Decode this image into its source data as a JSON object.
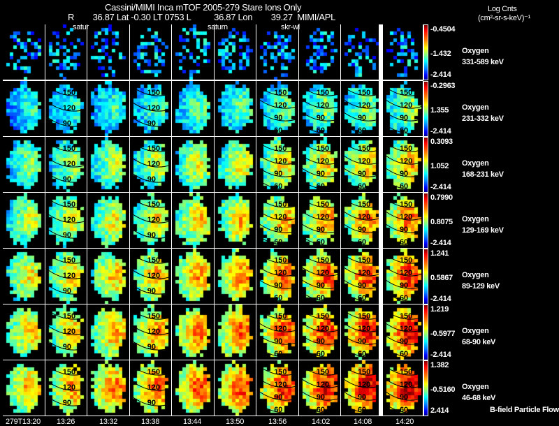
{
  "header": {
    "title": "Cassini/MIMI Inca mTOF  2005-279   Stare   Ions Only",
    "position_line": "R        36.87 Lat -0.30 LT 0753 L          36.87 Lon        39.27  MIMI/APL",
    "units_title": "Log Cnts",
    "units": "(cm²-sr-s-keV)⁻¹"
  },
  "column_tags": [
    "satur",
    "saturn",
    "skr-wl"
  ],
  "times": [
    "279T13:20",
    "13:26",
    "13:32",
    "13:38",
    "13:44",
    "13:50",
    "13:56",
    "14:02",
    "14:08",
    "14:20"
  ],
  "rows": [
    {
      "species": "Oxygen",
      "energy": "331-589 keV",
      "cb_max": "-0.4504",
      "cb_mid": "-1.432",
      "cb_min": "-2.414",
      "intensity": 0.15
    },
    {
      "species": "Oxygen",
      "energy": "231-332 keV",
      "cb_max": "-0.2963",
      "cb_mid": "1.355",
      "cb_min": "-2.414",
      "intensity": 0.55
    },
    {
      "species": "Oxygen",
      "energy": "168-231 keV",
      "cb_max": "0.3093",
      "cb_mid": "1.052",
      "cb_min": "-2.414",
      "intensity": 0.7
    },
    {
      "species": "Oxygen",
      "energy": "129-169 keV",
      "cb_max": "0.7990",
      "cb_mid": "0.8075",
      "cb_min": "-2.414",
      "intensity": 0.78
    },
    {
      "species": "Oxygen",
      "energy": "89-129 keV",
      "cb_max": "1.241",
      "cb_mid": "0.5867",
      "cb_min": "-2.414",
      "intensity": 0.85
    },
    {
      "species": "Oxygen",
      "energy": "68-90 keV",
      "cb_max": "1.219",
      "cb_mid": "-0.5977",
      "cb_min": "-2.414",
      "intensity": 0.9
    },
    {
      "species": "Oxygen",
      "energy": "46-68 keV",
      "cb_max": "1.382",
      "cb_mid": "-0.5160",
      "cb_min": "2.414",
      "intensity": 0.95
    }
  ],
  "contour_levels": [
    "150",
    "120",
    "90",
    "60"
  ],
  "footer_note": "B-field Particle Flow",
  "colors": {
    "background": "#000000",
    "grid": "#ffffff",
    "contour": "#000000"
  }
}
